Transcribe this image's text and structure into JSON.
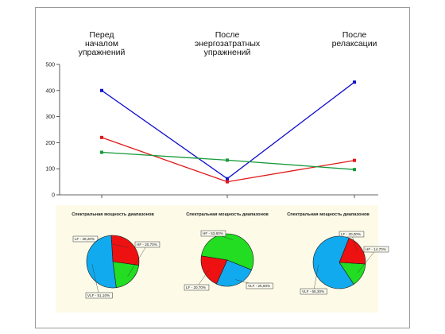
{
  "chart_data": [
    {
      "type": "line",
      "categories": [
        [
          "Перед",
          "началом",
          "упражнений"
        ],
        [
          "После",
          "энергозатратных",
          "упражнений"
        ],
        [
          "После",
          "релаксации"
        ]
      ],
      "ylim": [
        0,
        500
      ],
      "yticks": [
        0,
        100,
        200,
        300,
        400,
        500
      ],
      "series": [
        {
          "color": "#1010d0",
          "values": [
            400,
            62,
            432
          ]
        },
        {
          "color": "#e01818",
          "values": [
            220,
            50,
            132
          ]
        },
        {
          "color": "#159a3a",
          "values": [
            163,
            133,
            97
          ]
        }
      ]
    },
    {
      "type": "pie",
      "title": "Спектральная мощность диапазонов",
      "slices": [
        {
          "label": "LF - 28,20%",
          "value": 28.2,
          "color": "#ee1111"
        },
        {
          "label": "HF - 20,70%",
          "value": 20.7,
          "color": "#22dd22"
        },
        {
          "label": "VLF - 51,10%",
          "value": 51.1,
          "color": "#11aaee"
        }
      ]
    },
    {
      "type": "pie",
      "title": "Спектральная мощность диапазонов",
      "slices": [
        {
          "label": "HF - 53,60%",
          "value": 53.6,
          "color": "#22dd22"
        },
        {
          "label": "VLF - 25,60%",
          "value": 25.6,
          "color": "#11aaee"
        },
        {
          "label": "LF - 20,70%",
          "value": 20.7,
          "color": "#ee1111"
        }
      ]
    },
    {
      "type": "pie",
      "title": "Спектральная мощность диапазонов",
      "slices": [
        {
          "label": "LF - 20,00%",
          "value": 20.0,
          "color": "#ee1111"
        },
        {
          "label": "HF - 14,70%",
          "value": 14.7,
          "color": "#22dd22"
        },
        {
          "label": "VLF - 65,30%",
          "value": 65.3,
          "color": "#11aaee"
        }
      ]
    }
  ],
  "style": {
    "pie_panel_bg": "#fdfbe8",
    "axis_color": "#333333",
    "label_box_bg": "#fafaf0"
  }
}
